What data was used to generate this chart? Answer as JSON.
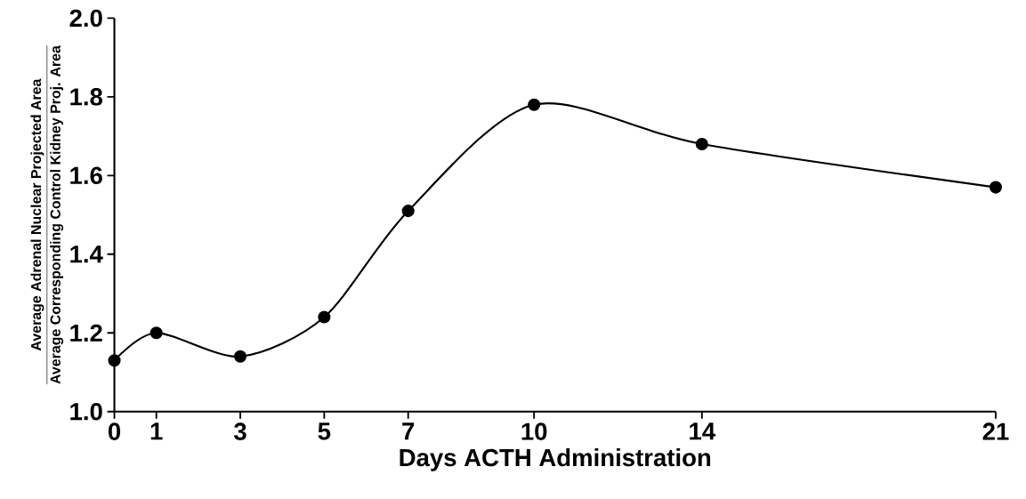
{
  "chart_data": {
    "type": "line",
    "xlabel": "Days   ACTH Administration",
    "ylabel": "\\dfrac{\\text{Average Adrenal Nuclear Projected Area}}{\\text{Average Corresponding Control Kidney Proj. Area}}",
    "x": [
      0,
      1,
      3,
      5,
      7,
      10,
      14,
      21
    ],
    "series": [
      {
        "color": "#000000",
        "values": [
          1.13,
          1.2,
          1.14,
          1.24,
          1.51,
          1.78,
          1.68,
          1.57
        ]
      }
    ],
    "xlim": [
      0,
      21
    ],
    "xticks": [
      0,
      1,
      3,
      5,
      7,
      10,
      14,
      21
    ],
    "ylim": [
      1.0,
      2.0
    ],
    "yticks": [
      {
        "value": 1.0,
        "label": "1.0"
      },
      {
        "value": 1.2,
        "label": "1.2"
      },
      {
        "value": 1.4,
        "label": "1.4"
      },
      {
        "value": 1.6,
        "label": "1.6"
      },
      {
        "value": 1.8,
        "label": "1.8"
      },
      {
        "value": 2.0,
        "label": "2.0"
      }
    ],
    "marker": "circle",
    "line_style": "solid",
    "grid": false
  }
}
